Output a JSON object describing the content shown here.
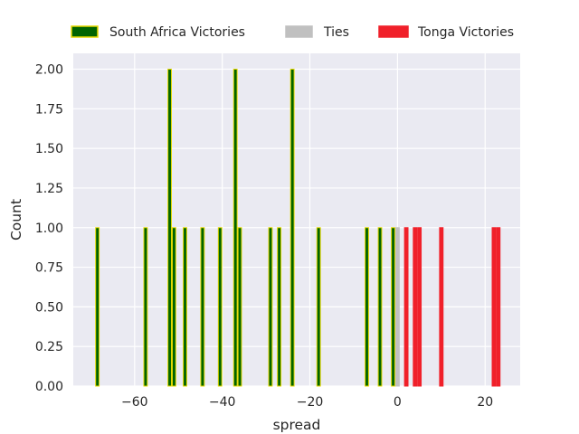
{
  "chart_data": {
    "type": "bar",
    "xlabel": "spread",
    "ylabel": "Count",
    "xlim": [
      -74,
      28
    ],
    "ylim": [
      0,
      2.1
    ],
    "grid": true,
    "legend_position": "top",
    "x_ticks": [
      -60,
      -40,
      -20,
      0,
      20
    ],
    "x_tick_labels": [
      "−60",
      "−40",
      "−20",
      "0",
      "20"
    ],
    "y_ticks": [
      0,
      0.25,
      0.5,
      0.75,
      1.0,
      1.25,
      1.5,
      1.75,
      2.0
    ],
    "y_tick_labels": [
      "0.00",
      "0.25",
      "0.50",
      "0.75",
      "1.00",
      "1.25",
      "1.50",
      "1.75",
      "2.00"
    ],
    "bar_width": 0.8,
    "series": [
      {
        "name": "South Africa Victories",
        "color": "#006400",
        "edge_color": "#e6d800",
        "x": [
          -68.5,
          -57.5,
          -52,
          -51,
          -48.5,
          -44.5,
          -40.5,
          -37,
          -36,
          -29,
          -27,
          -24,
          -18,
          -7,
          -4,
          -1
        ],
        "values": [
          1,
          1,
          2,
          1,
          1,
          1,
          1,
          2,
          1,
          1,
          1,
          2,
          1,
          1,
          1,
          1
        ]
      },
      {
        "name": "Ties",
        "color": "#c0c0c0",
        "edge_color": "#c0c0c0",
        "x": [
          0
        ],
        "values": [
          1
        ]
      },
      {
        "name": "Tonga Victories",
        "color": "#f0202a",
        "edge_color": "#f0202a",
        "x": [
          2,
          4,
          5,
          10,
          22,
          23
        ],
        "values": [
          1,
          1,
          1,
          1,
          1,
          1
        ]
      }
    ]
  }
}
